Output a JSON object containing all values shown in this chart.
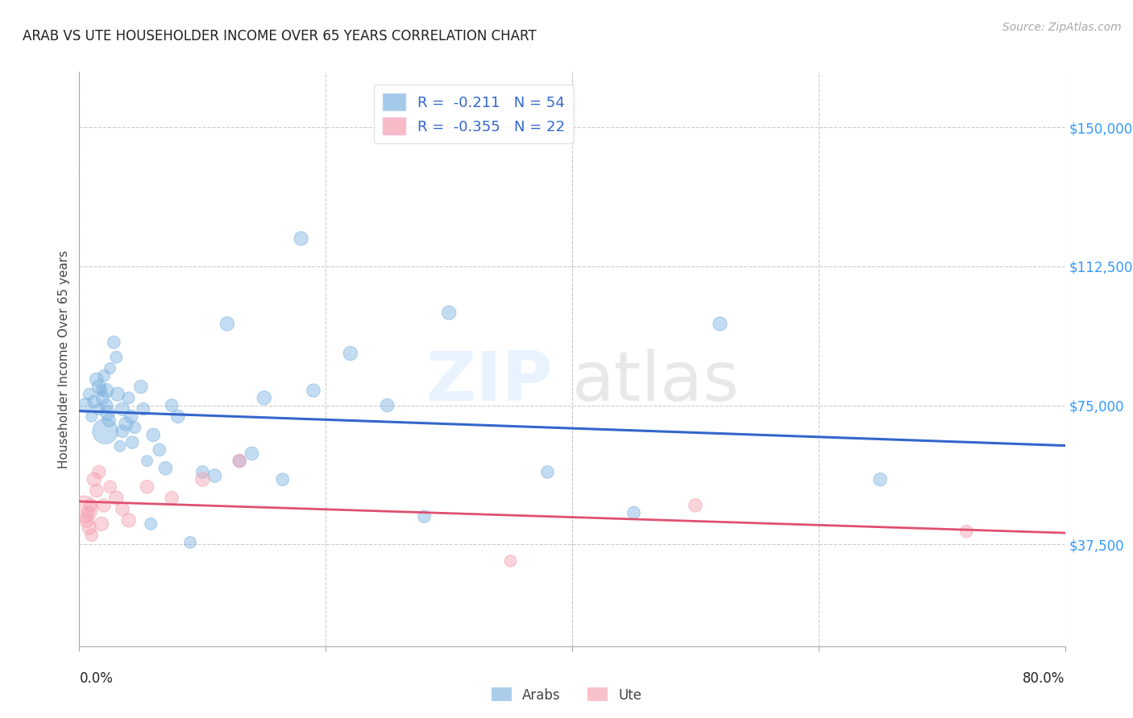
{
  "title": "ARAB VS UTE HOUSEHOLDER INCOME OVER 65 YEARS CORRELATION CHART",
  "source": "Source: ZipAtlas.com",
  "ylabel": "Householder Income Over 65 years",
  "yticks": [
    37500,
    75000,
    112500,
    150000
  ],
  "ytick_labels": [
    "$37,500",
    "$75,000",
    "$112,500",
    "$150,000"
  ],
  "xlim": [
    0.0,
    0.8
  ],
  "ylim": [
    10000,
    165000
  ],
  "legend_arab": "R =  -0.211   N = 54",
  "legend_ute": "R =  -0.355   N = 22",
  "legend_arab_label": "Arabs",
  "legend_ute_label": "Ute",
  "color_arab": "#7EB3E0",
  "color_ute": "#F4A0B0",
  "color_arab_line": "#3366CC",
  "color_ute_line": "#E05070",
  "color_ytick": "#3399FF",
  "arab_x": [
    0.005,
    0.008,
    0.01,
    0.012,
    0.014,
    0.016,
    0.016,
    0.018,
    0.019,
    0.02,
    0.021,
    0.022,
    0.022,
    0.023,
    0.024,
    0.025,
    0.028,
    0.03,
    0.031,
    0.033,
    0.035,
    0.035,
    0.038,
    0.04,
    0.042,
    0.043,
    0.045,
    0.05,
    0.052,
    0.055,
    0.058,
    0.06,
    0.065,
    0.07,
    0.075,
    0.08,
    0.09,
    0.1,
    0.11,
    0.12,
    0.13,
    0.14,
    0.15,
    0.165,
    0.18,
    0.19,
    0.22,
    0.25,
    0.28,
    0.3,
    0.38,
    0.45,
    0.52,
    0.65
  ],
  "arab_y": [
    75000,
    78000,
    72000,
    76000,
    82000,
    80000,
    74000,
    79000,
    77000,
    83000,
    68000,
    75000,
    79000,
    73000,
    71000,
    85000,
    92000,
    88000,
    78000,
    64000,
    74000,
    68000,
    70000,
    77000,
    72000,
    65000,
    69000,
    80000,
    74000,
    60000,
    43000,
    67000,
    63000,
    58000,
    75000,
    72000,
    38000,
    57000,
    56000,
    97000,
    60000,
    62000,
    77000,
    55000,
    120000,
    79000,
    89000,
    75000,
    45000,
    100000,
    57000,
    46000,
    97000,
    55000
  ],
  "arab_sizes": [
    60,
    40,
    35,
    45,
    50,
    55,
    40,
    35,
    50,
    40,
    180,
    45,
    55,
    60,
    50,
    35,
    45,
    40,
    55,
    35,
    50,
    45,
    55,
    40,
    50,
    45,
    40,
    50,
    45,
    35,
    40,
    50,
    45,
    50,
    45,
    50,
    40,
    45,
    50,
    55,
    45,
    50,
    55,
    45,
    55,
    50,
    55,
    50,
    45,
    55,
    45,
    45,
    55,
    50
  ],
  "ute_x": [
    0.004,
    0.006,
    0.007,
    0.008,
    0.009,
    0.01,
    0.012,
    0.014,
    0.016,
    0.018,
    0.02,
    0.025,
    0.03,
    0.035,
    0.04,
    0.055,
    0.075,
    0.1,
    0.13,
    0.35,
    0.5,
    0.72
  ],
  "ute_y": [
    47000,
    44000,
    46000,
    42000,
    48000,
    40000,
    55000,
    52000,
    57000,
    43000,
    48000,
    53000,
    50000,
    47000,
    44000,
    53000,
    50000,
    55000,
    60000,
    33000,
    48000,
    41000
  ],
  "ute_sizes": [
    200,
    60,
    45,
    55,
    50,
    45,
    55,
    50,
    50,
    55,
    50,
    45,
    55,
    50,
    55,
    50,
    50,
    55,
    50,
    40,
    50,
    45
  ]
}
